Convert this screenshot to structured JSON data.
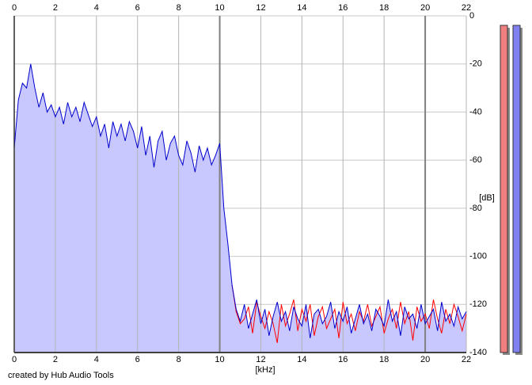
{
  "chart_data": {
    "type": "spectrum",
    "x_label": "[kHz]",
    "y_label": "[dB]",
    "credit": "created by Hub Audio Tools",
    "xlim": [
      0,
      22
    ],
    "xticks": [
      0,
      2,
      4,
      6,
      8,
      10,
      12,
      14,
      16,
      18,
      20,
      22
    ],
    "ylim": [
      -140,
      0
    ],
    "yticks": [
      0,
      -20,
      -40,
      -60,
      -80,
      -100,
      -120,
      -140
    ],
    "grid": true,
    "fill_color": "#c8c8ff",
    "x": [
      0,
      0.2,
      0.4,
      0.6,
      0.8,
      1,
      1.2,
      1.4,
      1.6,
      1.8,
      2,
      2.2,
      2.4,
      2.6,
      2.8,
      3,
      3.2,
      3.4,
      3.6,
      3.8,
      4,
      4.2,
      4.4,
      4.6,
      4.8,
      5,
      5.2,
      5.4,
      5.6,
      5.8,
      6,
      6.2,
      6.4,
      6.6,
      6.8,
      7,
      7.2,
      7.4,
      7.6,
      7.8,
      8,
      8.2,
      8.4,
      8.6,
      8.8,
      9,
      9.2,
      9.4,
      9.6,
      9.8,
      10,
      10.2,
      10.4,
      10.6,
      10.8,
      11,
      11.2,
      11.4,
      11.6,
      11.8,
      12,
      12.2,
      12.4,
      12.6,
      12.8,
      13,
      13.2,
      13.4,
      13.6,
      13.8,
      14,
      14.2,
      14.4,
      14.6,
      14.8,
      15,
      15.2,
      15.4,
      15.6,
      15.8,
      16,
      16.2,
      16.4,
      16.6,
      16.8,
      17,
      17.2,
      17.4,
      17.6,
      17.8,
      18,
      18.2,
      18.4,
      18.6,
      18.8,
      19,
      19.2,
      19.4,
      19.6,
      19.8,
      20,
      20.2,
      20.4,
      20.6,
      20.8,
      21,
      21.2,
      21.4,
      21.6,
      21.8,
      22
    ],
    "series": [
      {
        "color": "#ff0000",
        "values": [
          null,
          null,
          null,
          null,
          null,
          null,
          null,
          null,
          null,
          null,
          null,
          null,
          null,
          null,
          null,
          null,
          null,
          null,
          null,
          null,
          null,
          null,
          null,
          null,
          null,
          null,
          null,
          null,
          null,
          null,
          null,
          null,
          null,
          null,
          null,
          null,
          null,
          null,
          null,
          null,
          null,
          null,
          null,
          null,
          null,
          null,
          null,
          null,
          null,
          null,
          null,
          null,
          null,
          -112,
          -123,
          -128,
          -126,
          -121,
          -132,
          -119,
          -125,
          -130,
          -123,
          -128,
          -136,
          -120,
          -129,
          -124,
          -118,
          -131,
          -122,
          -127,
          -120,
          -133,
          -125,
          -121,
          -130,
          -126,
          -122,
          -134,
          -119,
          -128,
          -124,
          -131,
          -123,
          -127,
          -120,
          -129,
          -125,
          -121,
          -132,
          -126,
          -122,
          -130,
          -119,
          -128,
          -123,
          -135,
          -121,
          -127,
          -124,
          -130,
          -118,
          -126,
          -132,
          -122,
          -128,
          -120,
          -125,
          -131,
          -124
        ]
      },
      {
        "color": "#0000cc",
        "filled": true,
        "values": [
          -55,
          -35,
          -28,
          -30,
          -20,
          -30,
          -38,
          -32,
          -40,
          -37,
          -42,
          -38,
          -45,
          -36,
          -42,
          -38,
          -44,
          -36,
          -41,
          -46,
          -42,
          -50,
          -45,
          -55,
          -44,
          -50,
          -45,
          -52,
          -44,
          -48,
          -55,
          -46,
          -58,
          -50,
          -63,
          -52,
          -48,
          -60,
          -53,
          -50,
          -58,
          -62,
          -52,
          -57,
          -65,
          -54,
          -60,
          -55,
          -62,
          -58,
          -53,
          -80,
          -95,
          -112,
          -122,
          -127,
          -120,
          -130,
          -124,
          -118,
          -128,
          -122,
          -133,
          -125,
          -119,
          -127,
          -123,
          -131,
          -121,
          -126,
          -129,
          -120,
          -134,
          -124,
          -122,
          -128,
          -125,
          -119,
          -130,
          -123,
          -127,
          -121,
          -132,
          -126,
          -120,
          -128,
          -124,
          -131,
          -122,
          -125,
          -129,
          -118,
          -127,
          -123,
          -133,
          -121,
          -126,
          -124,
          -130,
          -120,
          -128,
          -125,
          -122,
          -131,
          -119,
          -127,
          -124,
          -129,
          -121,
          -126,
          -123
        ]
      }
    ]
  }
}
